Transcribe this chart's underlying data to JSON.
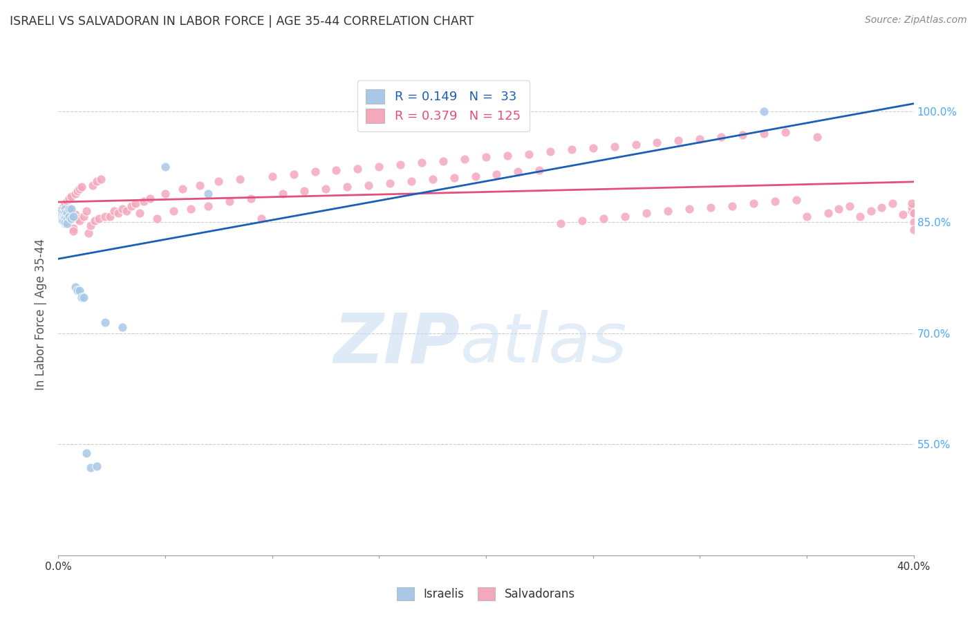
{
  "title": "ISRAELI VS SALVADORAN IN LABOR FORCE | AGE 35-44 CORRELATION CHART",
  "source": "Source: ZipAtlas.com",
  "ylabel": "In Labor Force | Age 35-44",
  "xlim": [
    0.0,
    0.4
  ],
  "ylim": [
    0.4,
    1.05
  ],
  "yticks": [
    0.55,
    0.7,
    0.85,
    1.0
  ],
  "ytick_labels": [
    "55.0%",
    "70.0%",
    "85.0%",
    "100.0%"
  ],
  "xtick_positions": [
    0.0,
    0.05,
    0.1,
    0.15,
    0.2,
    0.25,
    0.3,
    0.35,
    0.4
  ],
  "blue_R": 0.149,
  "blue_N": 33,
  "pink_R": 0.379,
  "pink_N": 125,
  "blue_color": "#a8c8e8",
  "pink_color": "#f4a8bc",
  "blue_line_color": "#1a5eb8",
  "pink_line_color": "#e0507a",
  "background_color": "#ffffff",
  "grid_color": "#cccccc",
  "title_color": "#333333",
  "right_tick_color": "#4da6ff",
  "israelis_x": [
    0.001,
    0.001,
    0.001,
    0.002,
    0.002,
    0.002,
    0.002,
    0.003,
    0.003,
    0.003,
    0.003,
    0.003,
    0.004,
    0.004,
    0.004,
    0.005,
    0.005,
    0.006,
    0.006,
    0.007,
    0.008,
    0.009,
    0.01,
    0.011,
    0.012,
    0.013,
    0.015,
    0.018,
    0.022,
    0.03,
    0.05,
    0.07,
    0.33
  ],
  "israelis_y": [
    0.865,
    0.862,
    0.858,
    0.862,
    0.858,
    0.855,
    0.852,
    0.868,
    0.862,
    0.858,
    0.855,
    0.85,
    0.862,
    0.855,
    0.848,
    0.868,
    0.858,
    0.868,
    0.855,
    0.858,
    0.762,
    0.758,
    0.758,
    0.748,
    0.748,
    0.538,
    0.518,
    0.52,
    0.715,
    0.708,
    0.925,
    0.888,
    1.0
  ],
  "salvadorans_x": [
    0.001,
    0.001,
    0.001,
    0.002,
    0.002,
    0.002,
    0.003,
    0.003,
    0.003,
    0.003,
    0.004,
    0.004,
    0.005,
    0.005,
    0.005,
    0.006,
    0.006,
    0.007,
    0.007,
    0.008,
    0.008,
    0.009,
    0.009,
    0.01,
    0.01,
    0.011,
    0.012,
    0.013,
    0.014,
    0.015,
    0.016,
    0.017,
    0.018,
    0.019,
    0.02,
    0.022,
    0.024,
    0.026,
    0.028,
    0.03,
    0.032,
    0.034,
    0.036,
    0.038,
    0.04,
    0.043,
    0.046,
    0.05,
    0.054,
    0.058,
    0.062,
    0.066,
    0.07,
    0.075,
    0.08,
    0.085,
    0.09,
    0.095,
    0.1,
    0.105,
    0.11,
    0.115,
    0.12,
    0.125,
    0.13,
    0.135,
    0.14,
    0.145,
    0.15,
    0.155,
    0.16,
    0.165,
    0.17,
    0.175,
    0.18,
    0.185,
    0.19,
    0.195,
    0.2,
    0.205,
    0.21,
    0.215,
    0.22,
    0.225,
    0.23,
    0.235,
    0.24,
    0.245,
    0.25,
    0.255,
    0.26,
    0.265,
    0.27,
    0.275,
    0.28,
    0.285,
    0.29,
    0.295,
    0.3,
    0.305,
    0.31,
    0.315,
    0.32,
    0.325,
    0.33,
    0.335,
    0.34,
    0.345,
    0.35,
    0.355,
    0.36,
    0.365,
    0.37,
    0.375,
    0.38,
    0.385,
    0.39,
    0.395,
    0.399,
    0.399,
    0.399,
    0.4,
    0.4,
    0.4,
    0.4
  ],
  "salvadorans_y": [
    0.865,
    0.86,
    0.855,
    0.87,
    0.862,
    0.855,
    0.875,
    0.865,
    0.855,
    0.848,
    0.878,
    0.862,
    0.882,
    0.868,
    0.855,
    0.885,
    0.862,
    0.842,
    0.838,
    0.888,
    0.86,
    0.892,
    0.855,
    0.895,
    0.852,
    0.898,
    0.858,
    0.865,
    0.835,
    0.845,
    0.9,
    0.852,
    0.905,
    0.855,
    0.908,
    0.858,
    0.858,
    0.865,
    0.862,
    0.868,
    0.865,
    0.872,
    0.875,
    0.862,
    0.878,
    0.882,
    0.855,
    0.888,
    0.865,
    0.895,
    0.868,
    0.9,
    0.872,
    0.905,
    0.878,
    0.908,
    0.882,
    0.855,
    0.912,
    0.888,
    0.915,
    0.892,
    0.918,
    0.895,
    0.92,
    0.898,
    0.922,
    0.9,
    0.925,
    0.902,
    0.928,
    0.905,
    0.93,
    0.908,
    0.932,
    0.91,
    0.935,
    0.912,
    0.938,
    0.915,
    0.94,
    0.918,
    0.942,
    0.92,
    0.945,
    0.848,
    0.948,
    0.852,
    0.95,
    0.855,
    0.952,
    0.858,
    0.955,
    0.862,
    0.958,
    0.865,
    0.96,
    0.868,
    0.962,
    0.87,
    0.965,
    0.872,
    0.968,
    0.875,
    0.97,
    0.878,
    0.972,
    0.88,
    0.858,
    0.965,
    0.862,
    0.868,
    0.872,
    0.858,
    0.865,
    0.87,
    0.875,
    0.86,
    0.865,
    0.87,
    0.875,
    0.862,
    0.862,
    0.85,
    0.84
  ]
}
